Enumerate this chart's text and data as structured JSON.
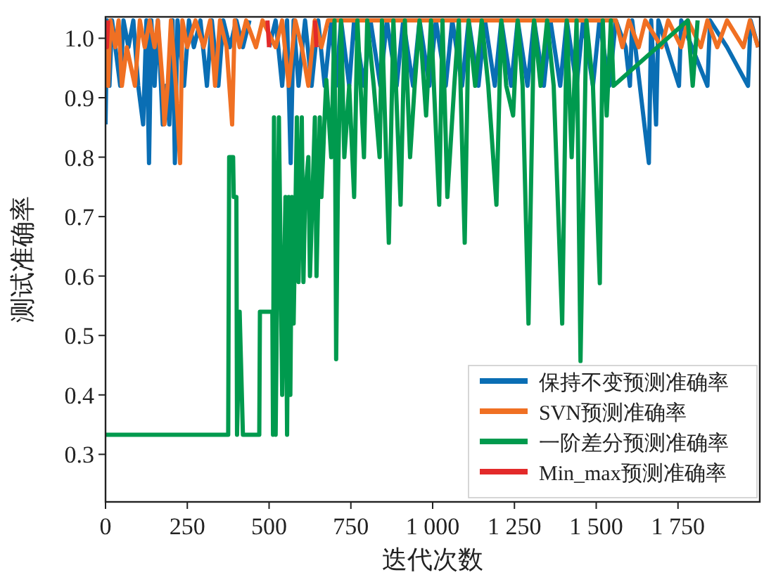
{
  "chart_data": {
    "type": "line",
    "xlabel": "迭代次数",
    "ylabel": "测试准确率",
    "xlim": [
      0,
      2000
    ],
    "ylim": [
      0.22,
      1.036
    ],
    "xticks": [
      0,
      250,
      500,
      750,
      {
        "value": 1000,
        "label": "1 000"
      },
      {
        "value": 1250,
        "label": "1 250"
      },
      {
        "value": 1500,
        "label": "1 500"
      },
      {
        "value": 1750,
        "label": "1 750"
      }
    ],
    "yticks": [
      {
        "value": 0.3,
        "label": "0.3"
      },
      {
        "value": 0.4,
        "label": "0.4"
      },
      {
        "value": 0.5,
        "label": "0.5"
      },
      {
        "value": 0.6,
        "label": "0.6"
      },
      {
        "value": 0.7,
        "label": "0.7"
      },
      {
        "value": 0.8,
        "label": "0.8"
      },
      {
        "value": 0.9,
        "label": "0.9"
      },
      {
        "value": 1.0,
        "label": "1.0"
      }
    ],
    "legend": "bottom right",
    "grid": false,
    "line_style": "solid",
    "marker": "none",
    "series": [
      {
        "name": "保持不变预测准确率",
        "color": "#0a6eb4",
        "x": [
          0,
          5,
          12,
          20,
          30,
          45,
          55,
          70,
          85,
          100,
          115,
          125,
          133,
          140,
          150,
          160,
          175,
          185,
          195,
          205,
          212,
          220,
          240,
          255,
          270,
          290,
          310,
          325,
          345,
          360,
          380,
          400,
          420,
          440,
          460,
          480,
          500,
          520,
          540,
          555,
          566,
          575,
          590,
          610,
          630,
          650,
          670,
          690,
          705,
          720,
          745,
          760,
          790,
          810,
          840,
          860,
          890,
          910,
          940,
          960,
          990,
          1010,
          1040,
          1060,
          1090,
          1110,
          1140,
          1160,
          1190,
          1210,
          1240,
          1260,
          1290,
          1310,
          1340,
          1360,
          1390,
          1410,
          1440,
          1460,
          1490,
          1510,
          1540,
          1560,
          1590,
          1603,
          1610,
          1661,
          1668,
          1683,
          1690,
          1753,
          1760,
          1840,
          1848,
          1900,
          1964,
          1972,
          1995
        ],
        "values": [
          0.855,
          1.03,
          0.92,
          1.03,
          0.985,
          0.92,
          1.03,
          0.985,
          1.03,
          0.92,
          0.855,
          1.03,
          0.79,
          1.03,
          0.92,
          1.03,
          0.855,
          0.92,
          0.855,
          1.03,
          0.79,
          1.03,
          0.92,
          1.03,
          0.985,
          1.03,
          0.92,
          1.03,
          0.92,
          1.03,
          0.985,
          1.03,
          0.985,
          1.03,
          null,
          null,
          0.985,
          1.03,
          0.92,
          1.03,
          0.79,
          1.03,
          0.92,
          1.03,
          0.92,
          1.03,
          0.92,
          1.03,
          0.92,
          1.03,
          0.92,
          1.03,
          0.92,
          1.03,
          0.92,
          1.03,
          0.92,
          1.03,
          0.92,
          1.03,
          0.92,
          1.03,
          0.92,
          1.03,
          0.92,
          1.03,
          0.92,
          1.03,
          0.92,
          1.03,
          0.92,
          1.03,
          0.92,
          1.03,
          0.92,
          1.03,
          0.92,
          1.03,
          0.92,
          1.03,
          0.92,
          1.03,
          0.92,
          1.03,
          0.985,
          0.92,
          1.03,
          0.79,
          1.03,
          0.855,
          1.03,
          0.92,
          1.03,
          0.92,
          1.03,
          0.985,
          0.92,
          1.03,
          0.985
        ]
      },
      {
        "name": "SVN预测准确率",
        "color": "#f07023",
        "x": [
          0,
          8,
          15,
          30,
          40,
          50,
          65,
          90,
          105,
          120,
          135,
          150,
          160,
          175,
          180,
          190,
          200,
          215,
          228,
          235,
          250,
          275,
          300,
          320,
          335,
          350,
          370,
          387,
          395,
          410,
          430,
          460,
          480,
          520,
          540,
          560,
          580,
          600,
          620,
          640,
          660,
          680,
          1560,
          1580,
          1600,
          1630,
          1650,
          1700,
          1720,
          1760,
          1780,
          1820,
          1840,
          1870,
          1900,
          1950,
          1970,
          1995
        ],
        "values": [
          1.03,
          0.92,
          1.03,
          0.985,
          1.03,
          0.92,
          0.985,
          0.92,
          1.03,
          0.985,
          1.03,
          0.985,
          1.03,
          0.92,
          0.855,
          0.92,
          1.03,
          0.92,
          0.79,
          1.03,
          0.985,
          1.03,
          0.985,
          1.03,
          0.92,
          1.03,
          0.985,
          0.855,
          1.03,
          0.985,
          1.03,
          0.985,
          1.03,
          0.985,
          1.03,
          0.92,
          1.03,
          0.985,
          0.92,
          1.03,
          0.985,
          1.03,
          1.03,
          0.985,
          1.03,
          0.985,
          1.03,
          0.985,
          1.03,
          0.985,
          1.03,
          0.985,
          1.03,
          0.985,
          1.03,
          0.985,
          1.03,
          0.985
        ]
      },
      {
        "name": "一阶差分预测准确率",
        "color": "#009a4e",
        "x": [
          0,
          375,
          378,
          390,
          392,
          400,
          402,
          410,
          420,
          470,
          472,
          510,
          512,
          515,
          520,
          530,
          540,
          550,
          555,
          560,
          565,
          570,
          575,
          585,
          590,
          600,
          605,
          610,
          620,
          625,
          640,
          645,
          655,
          660,
          670,
          675,
          690,
          700,
          705,
          710,
          720,
          730,
          745,
          760,
          770,
          790,
          800,
          820,
          838,
          845,
          866,
          880,
          902,
          915,
          931,
          945,
          960,
          980,
          995,
          1020,
          1030,
          1045,
          1066,
          1080,
          1098,
          1110,
          1130,
          1150,
          1170,
          1195,
          1210,
          1225,
          1246,
          1260,
          1275,
          1293,
          1310,
          1330,
          1350,
          1370,
          1396,
          1410,
          1425,
          1440,
          1452,
          1470,
          1490,
          1511,
          1520,
          1532,
          1545,
          1553,
          1780,
          1795,
          1810
        ],
        "values": [
          0.333,
          0.333,
          0.8,
          0.8,
          0.733,
          0.733,
          0.333,
          0.54,
          0.333,
          0.333,
          0.54,
          0.54,
          0.333,
          0.867,
          0.333,
          0.867,
          0.4,
          0.733,
          0.333,
          0.733,
          0.4,
          0.733,
          0.52,
          0.867,
          0.59,
          0.867,
          0.59,
          0.733,
          0.8,
          0.6,
          0.867,
          0.6,
          0.867,
          0.733,
          0.87,
          0.93,
          0.8,
          1.03,
          0.46,
          0.733,
          1.03,
          0.8,
          0.92,
          0.733,
          1.03,
          0.8,
          1.03,
          0.92,
          0.8,
          1.03,
          0.656,
          1.03,
          0.72,
          1.03,
          0.8,
          0.92,
          1.03,
          0.87,
          1.03,
          0.72,
          1.03,
          0.733,
          0.92,
          1.03,
          0.656,
          1.03,
          0.92,
          1.03,
          0.92,
          0.72,
          1.03,
          0.92,
          0.87,
          1.03,
          0.92,
          0.52,
          1.03,
          0.92,
          1.03,
          0.92,
          0.52,
          1.03,
          0.8,
          1.03,
          0.457,
          1.03,
          0.92,
          0.588,
          1.03,
          0.87,
          1.03,
          0.92,
          1.03,
          0.92,
          1.03
        ]
      },
      {
        "name": "Min_max预测准确率",
        "color": "#e32a2a",
        "x": [
          0,
          4,
          8,
          490,
          495,
          500,
          635,
          640,
          645
        ],
        "values": [
          1.03,
          0.985,
          1.03,
          null,
          1.03,
          0.985,
          null,
          1.03,
          0.985
        ]
      }
    ]
  }
}
